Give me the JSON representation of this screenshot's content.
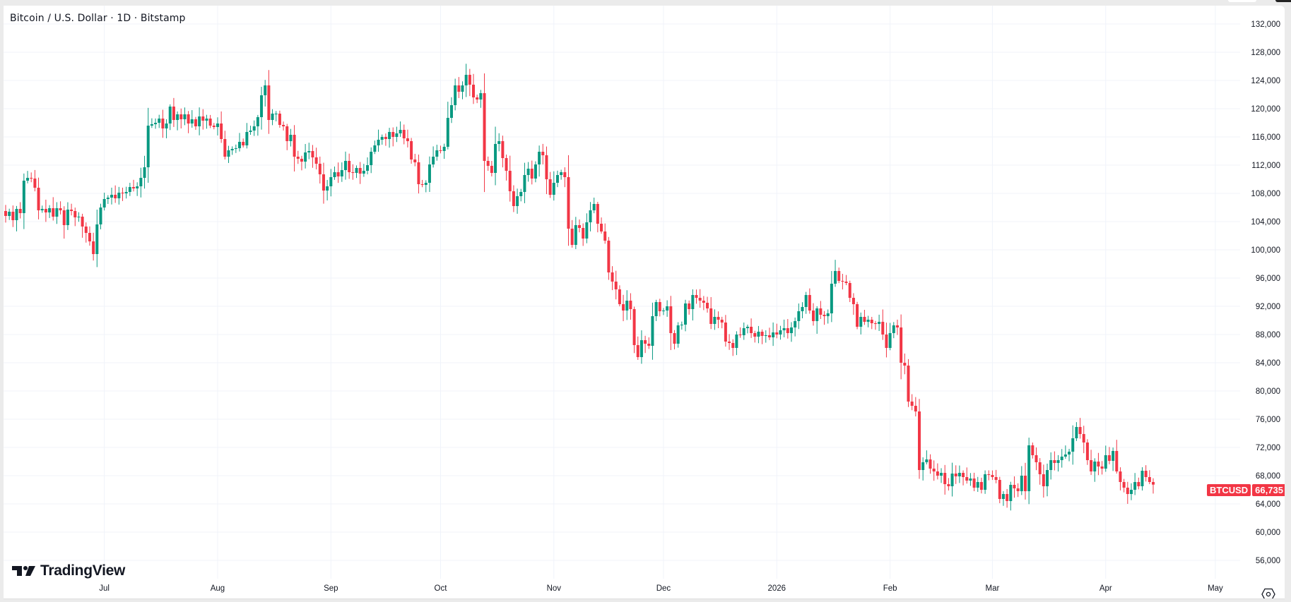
{
  "header": {
    "title": "Bitcoin / U.S. Dollar · 1D · Bitstamp"
  },
  "branding": {
    "logo_text": "TradingView",
    "logo_icon": "tradingview-logo-icon"
  },
  "price_label": {
    "symbol": "BTCUSD",
    "value": "66,735",
    "color": "#f23645"
  },
  "controls": {
    "settings_icon": "gear-hexagon-icon"
  },
  "colors": {
    "up": "#089981",
    "down": "#f23645",
    "grid": "#f0f3fa",
    "axis_text": "#131722"
  },
  "chart_data": {
    "type": "candlestick",
    "title": "Bitcoin / U.S. Dollar · 1D · Bitstamp",
    "xlabel": "",
    "ylabel": "",
    "ylim": [
      54000,
      132800
    ],
    "grid": true,
    "legend": null,
    "y_ticks": [
      132000,
      128000,
      124000,
      120000,
      116000,
      112000,
      108000,
      104000,
      100000,
      96000,
      92000,
      88000,
      84000,
      80000,
      76000,
      72000,
      68000,
      64000,
      60000,
      56000
    ],
    "y_tick_labels": [
      "132,000",
      "128,000",
      "124,000",
      "120,000",
      "116,000",
      "112,000",
      "108,000",
      "104,000",
      "100,000",
      "96,000",
      "92,000",
      "88,000",
      "84,000",
      "80,000",
      "76,000",
      "72,000",
      "68,000",
      "64,000",
      "60,000",
      "56,000"
    ],
    "x_ticks": [
      {
        "label": "Jul",
        "day_index": 27
      },
      {
        "label": "Aug",
        "day_index": 58
      },
      {
        "label": "Sep",
        "day_index": 89
      },
      {
        "label": "Oct",
        "day_index": 119
      },
      {
        "label": "Nov",
        "day_index": 150
      },
      {
        "label": "Dec",
        "day_index": 180
      },
      {
        "label": "2026",
        "day_index": 211
      },
      {
        "label": "Feb",
        "day_index": 242
      },
      {
        "label": "Mar",
        "day_index": 270
      },
      {
        "label": "Apr",
        "day_index": 301
      },
      {
        "label": "May",
        "day_index": 331
      }
    ],
    "start_date": "2025-06-04",
    "last_price": 66735,
    "first_open": 105500,
    "closes": [
      104800,
      105400,
      104200,
      105800,
      105200,
      109800,
      110200,
      110100,
      108800,
      105600,
      105800,
      105300,
      105900,
      104700,
      105900,
      105600,
      103500,
      105700,
      105500,
      104600,
      104700,
      103300,
      102400,
      101200,
      99400,
      103600,
      106000,
      107200,
      107400,
      107800,
      107300,
      108100,
      108000,
      108200,
      108900,
      108700,
      109000,
      110200,
      111700,
      117600,
      117800,
      118000,
      118600,
      117200,
      117900,
      120300,
      118400,
      119200,
      118500,
      119200,
      117900,
      118500,
      117500,
      118900,
      118300,
      118600,
      117600,
      117400,
      117900,
      115700,
      113200,
      114100,
      114300,
      114400,
      115300,
      114800,
      116700,
      116900,
      117500,
      118800,
      121900,
      123300,
      118400,
      119300,
      119300,
      117700,
      117500,
      115400,
      116300,
      113200,
      112900,
      112500,
      113800,
      114000,
      113100,
      112200,
      110700,
      108400,
      109000,
      110300,
      111000,
      110400,
      111300,
      112600,
      111000,
      110900,
      111600,
      110800,
      111200,
      112000,
      113900,
      114800,
      115600,
      116000,
      115700,
      116700,
      116000,
      116500,
      117000,
      115800,
      115400,
      112800,
      112400,
      109300,
      109200,
      109500,
      112100,
      113200,
      114100,
      114000,
      114600,
      118700,
      120500,
      123300,
      122400,
      123300,
      124800,
      123400,
      121600,
      121300,
      122200,
      112600,
      111900,
      110900,
      115000,
      115400,
      113000,
      111200,
      108300,
      106200,
      107600,
      108200,
      110600,
      111500,
      110100,
      112100,
      113900,
      113400,
      110000,
      107800,
      109500,
      110600,
      111000,
      110300,
      103000,
      100700,
      103500,
      103100,
      101600,
      103900,
      105600,
      106500,
      103700,
      102600,
      101300,
      96800,
      95500,
      94400,
      92300,
      91400,
      92800,
      91600,
      86500,
      84800,
      87200,
      86700,
      86400,
      90600,
      92600,
      91300,
      91400,
      92000,
      88200,
      86700,
      89300,
      89400,
      92400,
      91600,
      93600,
      93200,
      92800,
      92500,
      91700,
      89500,
      90500,
      90100,
      89700,
      87000,
      86800,
      86100,
      88000,
      87900,
      88900,
      89100,
      88200,
      87700,
      88400,
      87800,
      87900,
      87600,
      88300,
      88000,
      88600,
      88900,
      88200,
      89000,
      89900,
      91300,
      91900,
      93600,
      91400,
      89900,
      91700,
      90800,
      90600,
      91000,
      95200,
      97000,
      95600,
      95500,
      95300,
      93200,
      92300,
      89100,
      90500,
      89800,
      90100,
      89600,
      89500,
      89800,
      88000,
      86100,
      88200,
      89300,
      89000,
      84000,
      83600,
      78500,
      77900,
      77100,
      68800,
      69900,
      70300,
      69000,
      68600,
      68000,
      68400,
      66800,
      66500,
      68300,
      67900,
      68400,
      67800,
      67300,
      67600,
      66300,
      67100,
      66000,
      68200,
      68100,
      67800,
      67400,
      64700,
      65400,
      64400,
      66700,
      66200,
      65800,
      68000,
      65800,
      72300,
      70900,
      69900,
      68200,
      66500,
      68800,
      70200,
      69800,
      70200,
      70700,
      71000,
      71400,
      73300,
      74900,
      73900,
      72700,
      70200,
      68600,
      70000,
      69300,
      69000,
      70900,
      70100,
      71500,
      68600,
      67100,
      66300,
      65400,
      66000,
      67100,
      66500,
      68700,
      67800,
      67100,
      66735
    ],
    "notes": "Daily OHLC candles approximated from pixel positions; open = previous close; wick extents derived from volatility."
  }
}
